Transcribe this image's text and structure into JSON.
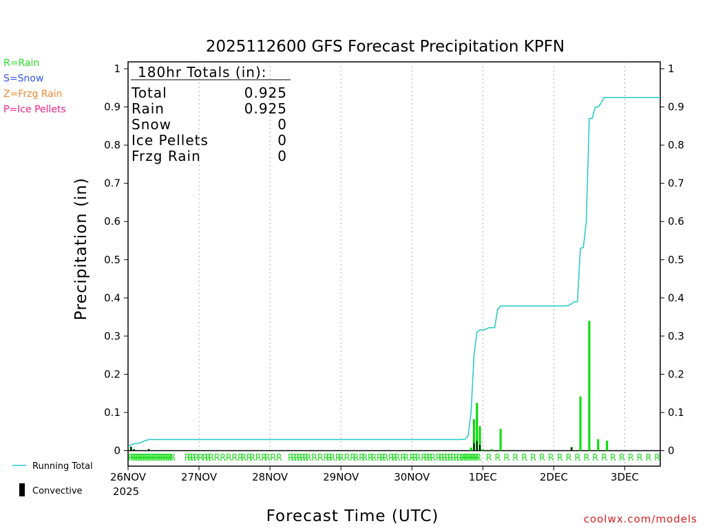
{
  "chart_data": {
    "type": "bar",
    "title": "2025112600 GFS Forecast Precipitation KPFN",
    "ylabel": "Precipitation (in)",
    "xlabel": "Forecast Time (UTC)",
    "ylim": [
      0,
      1
    ],
    "yticks": [
      "0",
      "0.1",
      "0.2",
      "0.3",
      "0.4",
      "0.5",
      "0.6",
      "0.7",
      "0.8",
      "0.9",
      "1"
    ],
    "xlim_hours": [
      0,
      180
    ],
    "day_ticks": [
      {
        "label": "26NOV",
        "hour": 0
      },
      {
        "label": "27NOV",
        "hour": 24
      },
      {
        "label": "28NOV",
        "hour": 48
      },
      {
        "label": "29NOV",
        "hour": 72
      },
      {
        "label": "30NOV",
        "hour": 96
      },
      {
        "label": "1DEC",
        "hour": 120
      },
      {
        "label": "2DEC",
        "hour": 144
      },
      {
        "label": "3DEC",
        "hour": 168
      }
    ],
    "year_label": "2025",
    "totals_box": {
      "heading": "180hr Totals (in):",
      "rows": [
        {
          "label": "Total",
          "value": "0.925"
        },
        {
          "label": "Rain",
          "value": "0.925"
        },
        {
          "label": "Snow",
          "value": "0"
        },
        {
          "label": "Ice Pellets",
          "value": "0"
        },
        {
          "label": "Frzg Rain",
          "value": "0"
        }
      ]
    },
    "legend_ptype": [
      {
        "text": "R=Rain",
        "color": "#22dd22"
      },
      {
        "text": "S=Snow",
        "color": "#3355ee"
      },
      {
        "text": "Z=Frzg Rain",
        "color": "#ee8833"
      },
      {
        "text": "P=Ice Pellets",
        "color": "#ee2288"
      }
    ],
    "legend_series": [
      {
        "text": "Running Total",
        "kind": "line",
        "color": "#20c8c8"
      },
      {
        "text": "Convective",
        "kind": "bar",
        "color": "#000000"
      }
    ],
    "series": [
      {
        "name": "Precipitation (rain)",
        "color": "#00dd00",
        "points": [
          {
            "hour": 1,
            "value": 0.01
          },
          {
            "hour": 2,
            "value": 0.004
          },
          {
            "hour": 7,
            "value": 0.004
          },
          {
            "hour": 116,
            "value": 0.008
          },
          {
            "hour": 117,
            "value": 0.082
          },
          {
            "hour": 118,
            "value": 0.125
          },
          {
            "hour": 119,
            "value": 0.064
          },
          {
            "hour": 120,
            "value": 0.004
          },
          {
            "hour": 123,
            "value": 0.004
          },
          {
            "hour": 126,
            "value": 0.057
          },
          {
            "hour": 150,
            "value": 0.01
          },
          {
            "hour": 153,
            "value": 0.142
          },
          {
            "hour": 156,
            "value": 0.34
          },
          {
            "hour": 159,
            "value": 0.03
          },
          {
            "hour": 162,
            "value": 0.026
          }
        ]
      },
      {
        "name": "Convective",
        "color": "#000000",
        "points": [
          {
            "hour": 1,
            "value": 0.01
          },
          {
            "hour": 2,
            "value": 0.004
          },
          {
            "hour": 7,
            "value": 0.004
          },
          {
            "hour": 117,
            "value": 0.02
          },
          {
            "hour": 118,
            "value": 0.025
          },
          {
            "hour": 119,
            "value": 0.015
          },
          {
            "hour": 150,
            "value": 0.008
          }
        ]
      },
      {
        "name": "Running Total",
        "type": "line",
        "color": "#20c8c8",
        "points": [
          [
            0,
            0.01
          ],
          [
            1,
            0.015
          ],
          [
            2,
            0.018
          ],
          [
            4,
            0.02
          ],
          [
            5,
            0.024
          ],
          [
            7,
            0.029
          ],
          [
            24,
            0.029
          ],
          [
            48,
            0.029
          ],
          [
            72,
            0.029
          ],
          [
            96,
            0.029
          ],
          [
            112,
            0.029
          ],
          [
            114,
            0.03
          ],
          [
            115,
            0.038
          ],
          [
            116,
            0.1
          ],
          [
            117,
            0.25
          ],
          [
            118,
            0.31
          ],
          [
            119,
            0.316
          ],
          [
            120,
            0.316
          ],
          [
            121,
            0.318
          ],
          [
            122,
            0.322
          ],
          [
            124,
            0.322
          ],
          [
            125,
            0.37
          ],
          [
            126,
            0.379
          ],
          [
            148,
            0.379
          ],
          [
            149,
            0.38
          ],
          [
            150,
            0.385
          ],
          [
            151,
            0.39
          ],
          [
            152,
            0.39
          ],
          [
            153,
            0.53
          ],
          [
            154,
            0.532
          ],
          [
            155,
            0.6
          ],
          [
            156,
            0.87
          ],
          [
            157,
            0.87
          ],
          [
            158,
            0.9
          ],
          [
            159,
            0.9
          ],
          [
            160,
            0.91
          ],
          [
            161,
            0.925
          ],
          [
            180,
            0.925
          ]
        ]
      }
    ],
    "ptype_strip": {
      "letter": "R",
      "color": "#22dd22",
      "hours": [
        0,
        0.6,
        1.2,
        1.8,
        2.4,
        3,
        3.6,
        4.2,
        4.8,
        5.4,
        6,
        6.6,
        7.2,
        7.8,
        8.4,
        9,
        9.6,
        10.2,
        10.8,
        11.4,
        12,
        12.6,
        13.2,
        14,
        19,
        20,
        21,
        22,
        23.5,
        25,
        26,
        27,
        29,
        31,
        33,
        35,
        37,
        38,
        40,
        41,
        43,
        45,
        46,
        48,
        50,
        54,
        55,
        56,
        57,
        58,
        59,
        60,
        62,
        64,
        66,
        67,
        68,
        70,
        71,
        73,
        75,
        76,
        78,
        79,
        81,
        82,
        84,
        85,
        86,
        88,
        89,
        90,
        92,
        93,
        95,
        96,
        97,
        99,
        100,
        101,
        102,
        104,
        105,
        106,
        107,
        108,
        109,
        110,
        111,
        112,
        112.6,
        113.2,
        113.8,
        114.4,
        115,
        115.6,
        116.2,
        116.8,
        117.4,
        121,
        124,
        127,
        130,
        133,
        136,
        139,
        142,
        145,
        148,
        151,
        154,
        157,
        160,
        163,
        166,
        169,
        172,
        175,
        178
      ]
    },
    "watermark": "coolwx.com/models"
  }
}
